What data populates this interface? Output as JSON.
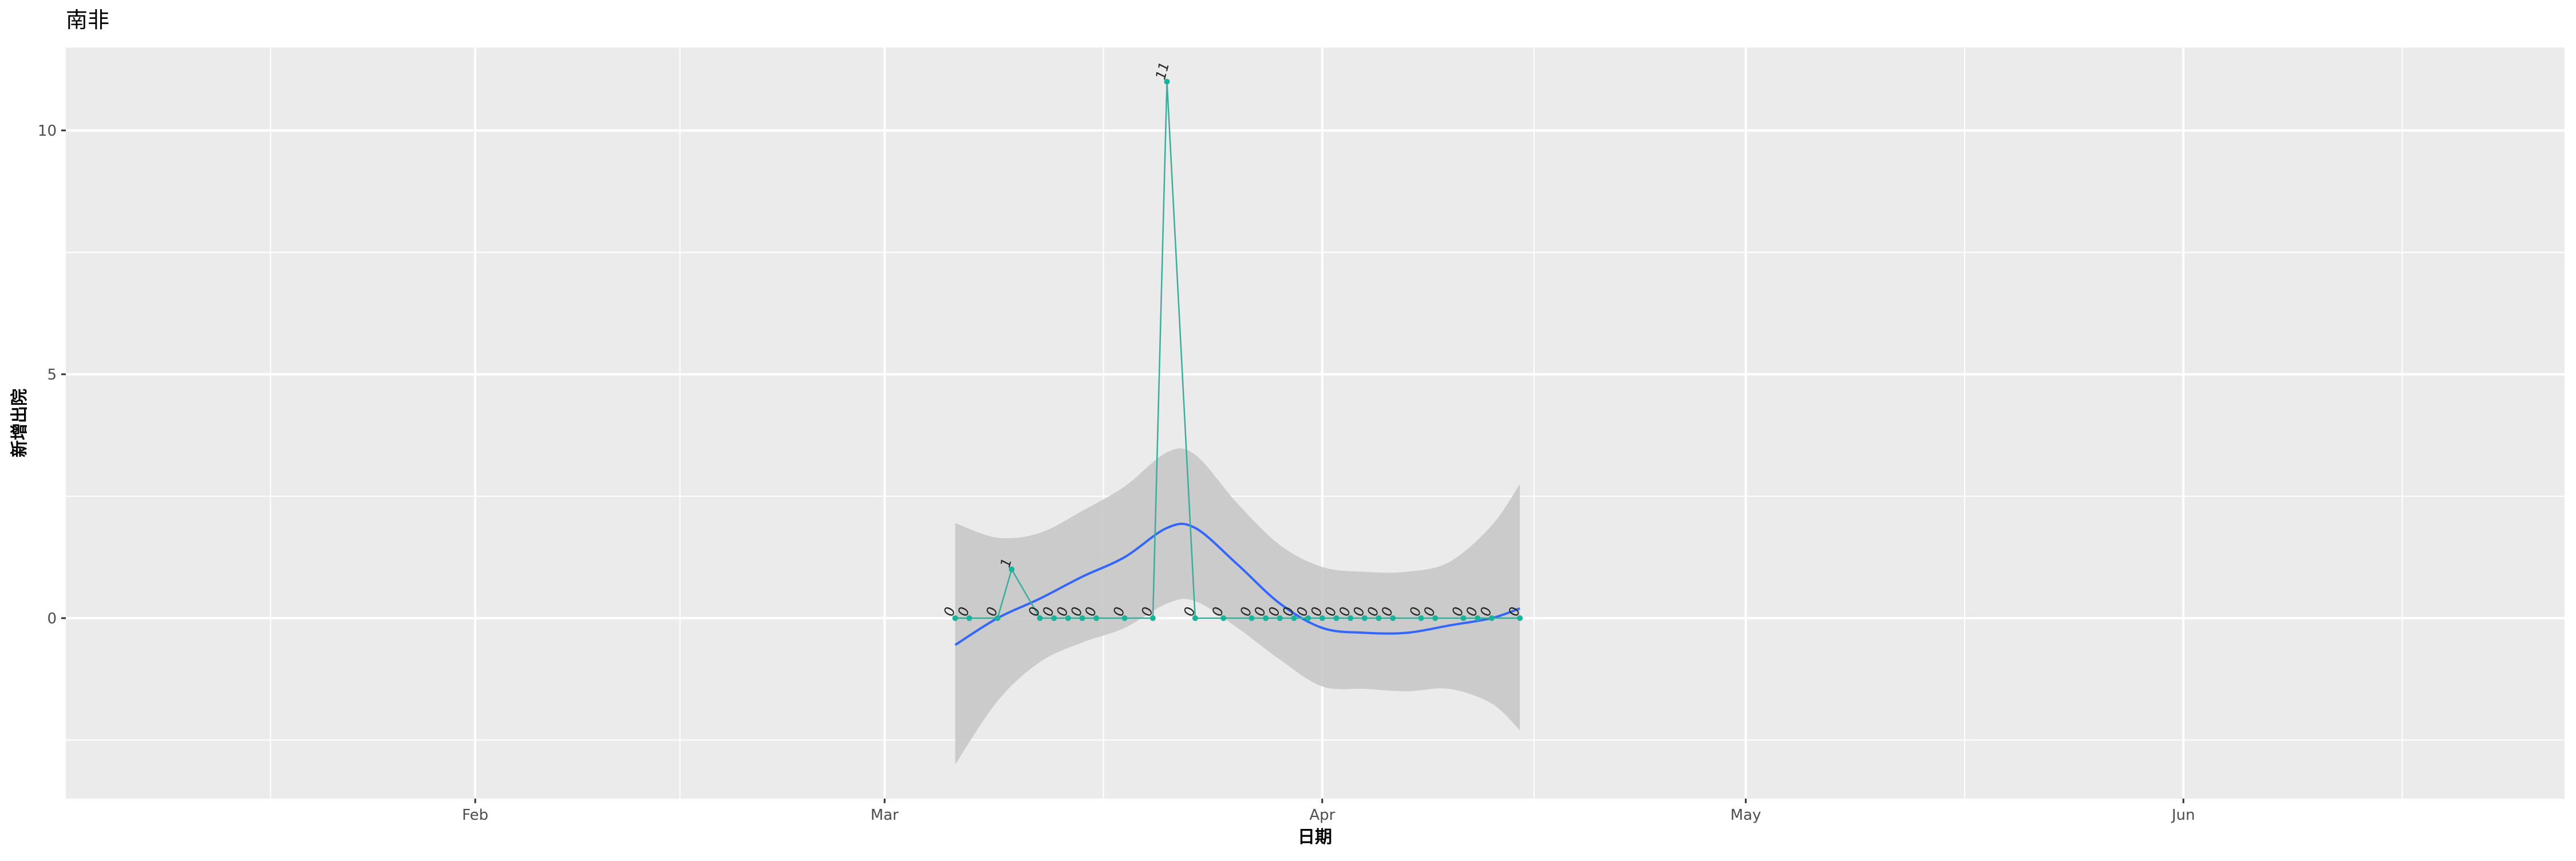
{
  "chart_data": {
    "type": "line",
    "title": "南非",
    "xlabel": "日期",
    "ylabel": "新增出院",
    "x_ticks": [
      {
        "date": "2020-02-01",
        "label": "Feb"
      },
      {
        "date": "2020-03-01",
        "label": "Mar"
      },
      {
        "date": "2020-04-01",
        "label": "Apr"
      },
      {
        "date": "2020-05-01",
        "label": "May"
      },
      {
        "date": "2020-06-01",
        "label": "Jun"
      }
    ],
    "x_range": [
      "2020-01-03",
      "2020-06-28"
    ],
    "y_ticks": [
      0,
      5,
      10
    ],
    "ylim": [
      -3.7,
      11.7
    ],
    "grid": true,
    "colors": {
      "panel": "#EBEBEB",
      "grid": "#FFFFFF",
      "line": "#3AAE9A",
      "point": "#19B29A",
      "smooth": "#3366FF",
      "ribbon": "#C8C8C8"
    },
    "series": [
      {
        "type": "line",
        "points": [
          {
            "x": "2020-03-06",
            "y": 0
          },
          {
            "x": "2020-03-07",
            "y": 0
          },
          {
            "x": "2020-03-09",
            "y": 0
          },
          {
            "x": "2020-03-10",
            "y": 1
          },
          {
            "x": "2020-03-12",
            "y": 0
          },
          {
            "x": "2020-03-13",
            "y": 0
          },
          {
            "x": "2020-03-14",
            "y": 0
          },
          {
            "x": "2020-03-15",
            "y": 0
          },
          {
            "x": "2020-03-16",
            "y": 0
          },
          {
            "x": "2020-03-18",
            "y": 0
          },
          {
            "x": "2020-03-20",
            "y": 0
          },
          {
            "x": "2020-03-21",
            "y": 11
          },
          {
            "x": "2020-03-23",
            "y": 0
          },
          {
            "x": "2020-03-25",
            "y": 0
          },
          {
            "x": "2020-03-27",
            "y": 0
          },
          {
            "x": "2020-03-28",
            "y": 0
          },
          {
            "x": "2020-03-29",
            "y": 0
          },
          {
            "x": "2020-03-30",
            "y": 0
          },
          {
            "x": "2020-03-31",
            "y": 0
          },
          {
            "x": "2020-04-01",
            "y": 0
          },
          {
            "x": "2020-04-02",
            "y": 0
          },
          {
            "x": "2020-04-03",
            "y": 0
          },
          {
            "x": "2020-04-04",
            "y": 0
          },
          {
            "x": "2020-04-05",
            "y": 0
          },
          {
            "x": "2020-04-06",
            "y": 0
          },
          {
            "x": "2020-04-08",
            "y": 0
          },
          {
            "x": "2020-04-09",
            "y": 0
          },
          {
            "x": "2020-04-11",
            "y": 0
          },
          {
            "x": "2020-04-12",
            "y": 0
          },
          {
            "x": "2020-04-13",
            "y": 0
          },
          {
            "x": "2020-04-15",
            "y": 0
          }
        ]
      },
      {
        "type": "smooth",
        "fit": [
          {
            "x": "2020-03-06",
            "y": -0.55
          },
          {
            "x": "2020-03-09",
            "y": 0.0
          },
          {
            "x": "2020-03-12",
            "y": 0.4
          },
          {
            "x": "2020-03-15",
            "y": 0.85
          },
          {
            "x": "2020-03-18",
            "y": 1.25
          },
          {
            "x": "2020-03-21",
            "y": 1.85
          },
          {
            "x": "2020-03-23",
            "y": 1.85
          },
          {
            "x": "2020-03-26",
            "y": 1.1
          },
          {
            "x": "2020-03-29",
            "y": 0.3
          },
          {
            "x": "2020-04-01",
            "y": -0.2
          },
          {
            "x": "2020-04-04",
            "y": -0.3
          },
          {
            "x": "2020-04-07",
            "y": -0.3
          },
          {
            "x": "2020-04-10",
            "y": -0.15
          },
          {
            "x": "2020-04-13",
            "y": 0.0
          },
          {
            "x": "2020-04-15",
            "y": 0.2
          }
        ],
        "upper": [
          {
            "x": "2020-03-06",
            "y": 1.95
          },
          {
            "x": "2020-03-09",
            "y": 1.65
          },
          {
            "x": "2020-03-12",
            "y": 1.75
          },
          {
            "x": "2020-03-15",
            "y": 2.2
          },
          {
            "x": "2020-03-18",
            "y": 2.7
          },
          {
            "x": "2020-03-21",
            "y": 3.4
          },
          {
            "x": "2020-03-23",
            "y": 3.35
          },
          {
            "x": "2020-03-26",
            "y": 2.35
          },
          {
            "x": "2020-03-29",
            "y": 1.5
          },
          {
            "x": "2020-04-01",
            "y": 1.05
          },
          {
            "x": "2020-04-04",
            "y": 0.95
          },
          {
            "x": "2020-04-07",
            "y": 0.95
          },
          {
            "x": "2020-04-10",
            "y": 1.15
          },
          {
            "x": "2020-04-13",
            "y": 1.9
          },
          {
            "x": "2020-04-15",
            "y": 2.75
          }
        ],
        "lower": [
          {
            "x": "2020-03-06",
            "y": -3.0
          },
          {
            "x": "2020-03-09",
            "y": -1.7
          },
          {
            "x": "2020-03-12",
            "y": -0.9
          },
          {
            "x": "2020-03-15",
            "y": -0.5
          },
          {
            "x": "2020-03-18",
            "y": -0.2
          },
          {
            "x": "2020-03-21",
            "y": 0.3
          },
          {
            "x": "2020-03-23",
            "y": 0.35
          },
          {
            "x": "2020-03-26",
            "y": -0.2
          },
          {
            "x": "2020-03-29",
            "y": -0.85
          },
          {
            "x": "2020-04-01",
            "y": -1.4
          },
          {
            "x": "2020-04-04",
            "y": -1.45
          },
          {
            "x": "2020-04-07",
            "y": -1.5
          },
          {
            "x": "2020-04-10",
            "y": -1.45
          },
          {
            "x": "2020-04-13",
            "y": -1.75
          },
          {
            "x": "2020-04-15",
            "y": -2.3
          }
        ]
      }
    ]
  }
}
